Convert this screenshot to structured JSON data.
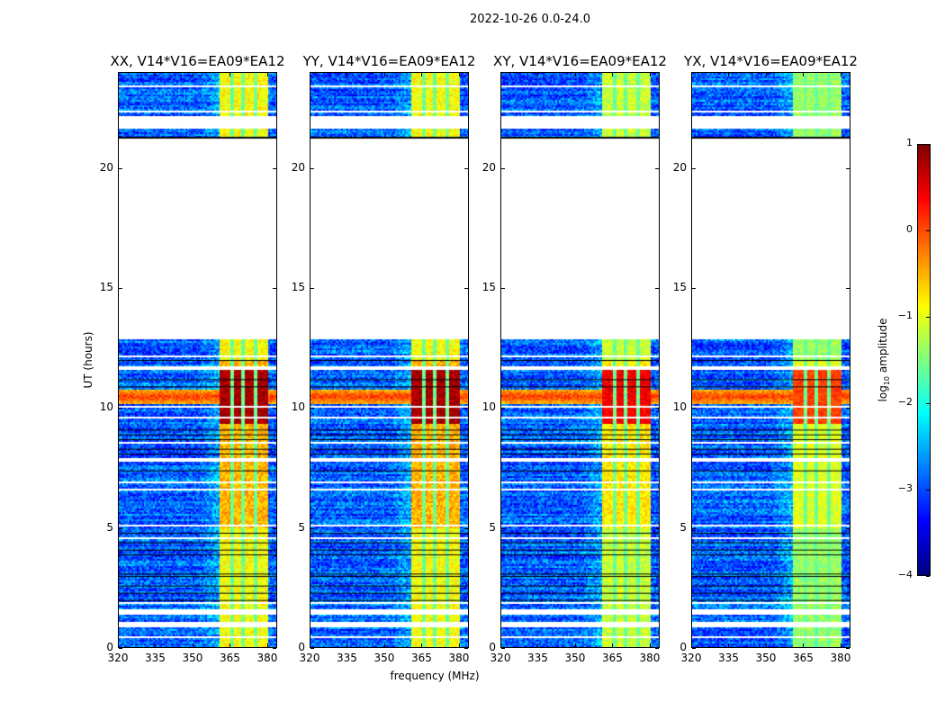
{
  "chart_data": {
    "type": "heatmap",
    "title": "2022-10-26 0.0-24.0",
    "xlabel": "frequency (MHz)",
    "ylabel": "UT (hours)",
    "xlim": [
      320,
      384
    ],
    "ylim": [
      0,
      24
    ],
    "xticks": [
      "320",
      "335",
      "350",
      "365",
      "380"
    ],
    "yticks": [
      "0",
      "5",
      "10",
      "15",
      "20"
    ],
    "panels": [
      {
        "title": "XX, V14*V16=EA09*EA12",
        "rfi_level": 1.0
      },
      {
        "title": "YY, V14*V16=EA09*EA12",
        "rfi_level": 1.0
      },
      {
        "title": "XY, V14*V16=EA09*EA12",
        "rfi_level": 0.92
      },
      {
        "title": "YX, V14*V16=EA09*EA12",
        "rfi_level": 0.85
      }
    ],
    "colorbar": {
      "label": "log10 amplitude",
      "colormap": "jet",
      "range": [
        -4,
        1
      ],
      "ticks": [
        "1",
        "0",
        "−1",
        "−2",
        "−3",
        "−4"
      ]
    },
    "features": {
      "background_log_amp": -2.9,
      "rfi_band_mhz": [
        360.5,
        380
      ],
      "rfi_column_gaps_mhz": [
        366,
        370.3,
        375.3
      ],
      "strong_rfi_hours": [
        9.4,
        11.8
      ],
      "broadband_burst_hours": [
        10.2,
        10.8
      ],
      "no_data_hours": [
        [
          12.9,
          21.3
        ],
        [
          21.7,
          22.25
        ],
        [
          1.39,
          1.65
        ],
        [
          0.86,
          1.12
        ],
        [
          7.75,
          7.94
        ]
      ],
      "flagged_lines_hours": [
        21.3,
        12.0,
        11.2,
        10.9,
        9.1,
        8.9,
        8.7,
        8.3,
        8.1,
        7.4,
        4.8,
        4.4,
        4.1,
        3.9,
        3.1,
        3.0,
        2.6,
        2.3,
        2.0
      ],
      "thin_gap_hours": [
        23.5,
        22.4,
        12.2,
        11.7,
        10.1,
        9.6,
        8.6,
        6.9,
        6.6,
        5.1,
        4.6,
        1.9,
        0.45
      ]
    }
  }
}
